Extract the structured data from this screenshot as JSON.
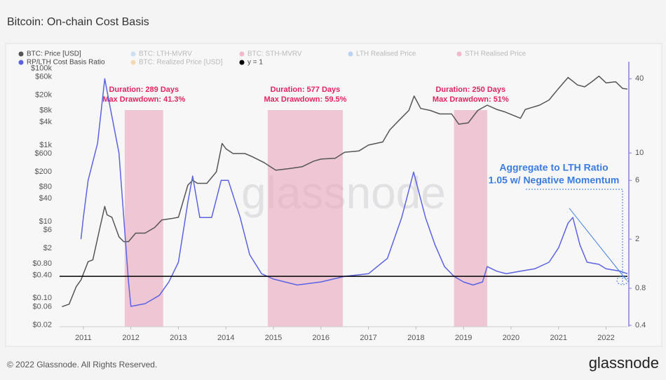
{
  "header": {
    "title": "Bitcoin: On-chain Cost Basis"
  },
  "footer": {
    "copyright": "© 2022 Glassnode. All Rights Reserved.",
    "logo": "glassnode"
  },
  "chart_data": {
    "type": "line",
    "watermark": "glassnode",
    "log_scale": true,
    "xlim": [
      2010.5,
      2022.45
    ],
    "xticks": [
      2011,
      2012,
      2013,
      2014,
      2015,
      2016,
      2017,
      2018,
      2019,
      2020,
      2021,
      2022
    ],
    "ylim": [
      0.018,
      150000
    ],
    "yticks": [
      {
        "value": 100000,
        "label": "$100k"
      },
      {
        "value": 60000,
        "label": "$60k"
      },
      {
        "value": 20000,
        "label": "$20k"
      },
      {
        "value": 8000,
        "label": "$8k"
      },
      {
        "value": 4000,
        "label": "$4k"
      },
      {
        "value": 1000,
        "label": "$1k"
      },
      {
        "value": 600,
        "label": "$600"
      },
      {
        "value": 200,
        "label": "$200"
      },
      {
        "value": 80,
        "label": "$80"
      },
      {
        "value": 40,
        "label": "$40"
      },
      {
        "value": 10,
        "label": "$10"
      },
      {
        "value": 6,
        "label": "$6"
      },
      {
        "value": 2,
        "label": "$2"
      },
      {
        "value": 0.8,
        "label": "$0.80"
      },
      {
        "value": 0.4,
        "label": "$0.40"
      },
      {
        "value": 0.1,
        "label": "$0.10"
      },
      {
        "value": 0.06,
        "label": "$0.06"
      },
      {
        "value": 0.02,
        "label": "$0.02"
      }
    ],
    "y2lim": [
      0.39,
      55
    ],
    "y2ticks": [
      40,
      10,
      6,
      2,
      0.8,
      0.4
    ],
    "series": [
      {
        "name": "BTC: Price [USD]",
        "color": "#555555",
        "visible": true,
        "x": [
          2010.55,
          2010.7,
          2010.85,
          2010.95,
          2011.1,
          2011.2,
          2011.35,
          2011.45,
          2011.5,
          2011.6,
          2011.75,
          2011.85,
          2011.95,
          2012.1,
          2012.3,
          2012.5,
          2012.65,
          2012.85,
          2013.0,
          2013.2,
          2013.3,
          2013.4,
          2013.6,
          2013.8,
          2013.92,
          2014.0,
          2014.15,
          2014.4,
          2014.55,
          2014.8,
          2015.05,
          2015.3,
          2015.6,
          2015.85,
          2016.0,
          2016.3,
          2016.5,
          2016.8,
          2017.0,
          2017.3,
          2017.45,
          2017.65,
          2017.85,
          2017.96,
          2018.1,
          2018.3,
          2018.5,
          2018.75,
          2018.9,
          2019.1,
          2019.3,
          2019.5,
          2019.7,
          2019.85,
          2020.2,
          2020.3,
          2020.6,
          2020.8,
          2021.0,
          2021.2,
          2021.4,
          2021.55,
          2021.7,
          2021.85,
          2022.0,
          2022.2,
          2022.35,
          2022.45
        ],
        "values": [
          0.06,
          0.07,
          0.2,
          0.3,
          0.9,
          1,
          7,
          25,
          15,
          13,
          4,
          3,
          3,
          5,
          5,
          7,
          11,
          12,
          13,
          90,
          120,
          100,
          100,
          200,
          1100,
          800,
          600,
          600,
          500,
          350,
          220,
          240,
          270,
          380,
          430,
          450,
          650,
          700,
          1000,
          1200,
          2500,
          4500,
          8000,
          19000,
          9000,
          8000,
          6500,
          6500,
          3500,
          3800,
          8000,
          11000,
          8500,
          7500,
          5000,
          8500,
          11000,
          15000,
          30000,
          58000,
          37000,
          33000,
          45000,
          63000,
          42000,
          45000,
          30000,
          29000
        ]
      },
      {
        "name": "BTC: LTH-MVRV",
        "color": "#7fb3e8",
        "visible": false
      },
      {
        "name": "BTC: STH-MVRV",
        "color": "#e0457b",
        "visible": false
      },
      {
        "name": "LTH Realised Price",
        "color": "#4a90e2",
        "visible": false
      },
      {
        "name": "STH Realised Price",
        "color": "#e0457b",
        "visible": false
      },
      {
        "name": "RP/LTH Cost Basis Ratio",
        "color": "#5b63e0",
        "visible": true,
        "axis": "y2",
        "x": [
          2010.95,
          2011.0,
          2011.1,
          2011.3,
          2011.45,
          2011.55,
          2011.75,
          2011.85,
          2011.95,
          2012.0,
          2012.3,
          2012.6,
          2012.8,
          2013.0,
          2013.2,
          2013.3,
          2013.45,
          2013.7,
          2013.9,
          2014.05,
          2014.3,
          2014.5,
          2014.75,
          2015.0,
          2015.5,
          2016.0,
          2016.5,
          2017.0,
          2017.4,
          2017.7,
          2017.95,
          2018.2,
          2018.4,
          2018.6,
          2018.8,
          2019.0,
          2019.2,
          2019.4,
          2019.5,
          2019.7,
          2019.9,
          2020.2,
          2020.5,
          2020.8,
          2021.0,
          2021.2,
          2021.3,
          2021.45,
          2021.6,
          2021.85,
          2022.0,
          2022.3,
          2022.45
        ],
        "values": [
          2,
          3,
          6,
          12,
          40,
          25,
          10,
          3,
          0.9,
          0.57,
          0.6,
          0.7,
          0.9,
          1.3,
          4,
          6.5,
          3,
          3,
          6,
          6,
          3,
          1.5,
          1.05,
          0.95,
          0.85,
          0.9,
          1.0,
          1.05,
          1.4,
          3,
          7,
          3,
          1.8,
          1.2,
          1.0,
          0.9,
          0.85,
          0.9,
          1.2,
          1.1,
          1.05,
          1.1,
          1.15,
          1.3,
          1.7,
          2.7,
          3.0,
          1.8,
          1.3,
          1.25,
          1.15,
          1.1,
          1.05
        ]
      },
      {
        "name": "BTC: Realized Price [USD]",
        "color": "#f0a040",
        "visible": false
      },
      {
        "name": "y = 1",
        "color": "#000000",
        "visible": true,
        "kind": "hline",
        "axis": "y2",
        "value": 1
      }
    ],
    "shaded_regions": [
      {
        "start": 2011.87,
        "end": 2012.68,
        "color": "#e9a6bd",
        "lines": [
          "Duration: 289 Days",
          "Max Drawdown: 41.3%"
        ]
      },
      {
        "start": 2014.88,
        "end": 2016.46,
        "color": "#e9a6bd",
        "lines": [
          "Duration: 577 Days",
          "Max Drawdown: 59.5%"
        ]
      },
      {
        "start": 2018.8,
        "end": 2019.5,
        "color": "#e9a6bd",
        "lines": [
          "Duration: 250 Days",
          "Max Drawdown: 51%"
        ]
      }
    ],
    "annotation": {
      "color": "#3b7be0",
      "lines": [
        "Aggregate to LTH Ratio",
        "1.05 w/ Negative Momentum"
      ]
    }
  }
}
